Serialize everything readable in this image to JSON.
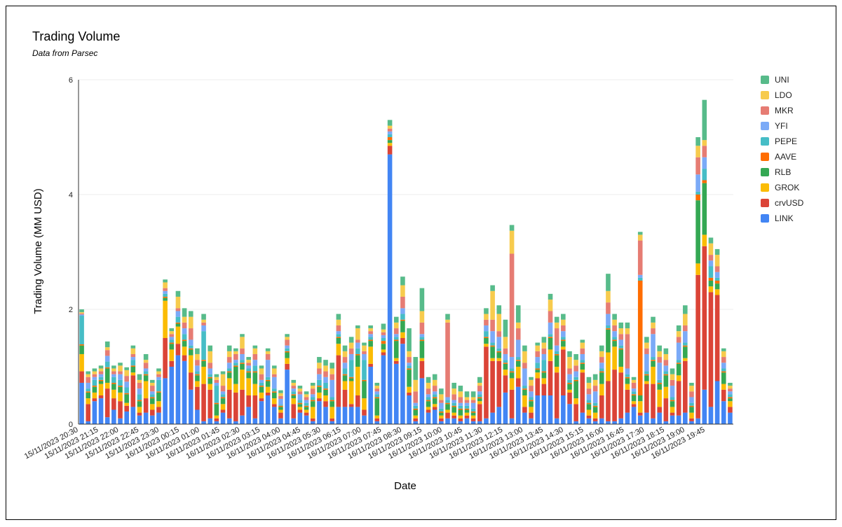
{
  "chart_data": {
    "type": "bar",
    "stacked": true,
    "title": "Trading Volume",
    "subtitle": "Data from Parsec",
    "xlabel": "Date",
    "ylabel": "Trading Volume (MM USD)",
    "ylim": [
      0,
      6
    ],
    "yticks": [
      0,
      2,
      4,
      6
    ],
    "legend_position": "right",
    "xtick_labels": [
      "15/11/2023 20:30",
      "15/11/2023 21:15",
      "15/11/2023 22:00",
      "15/11/2023 22:45",
      "15/11/2023 23:30",
      "16/11/2023 00:15",
      "16/11/2023 01:00",
      "16/11/2023 01:45",
      "16/11/2023 02:30",
      "16/11/2023 03:15",
      "16/11/2023 04:00",
      "16/11/2023 04:45",
      "16/11/2023 05:30",
      "16/11/2023 06:15",
      "16/11/2023 07:00",
      "16/11/2023 07:45",
      "16/11/2023 08:30",
      "16/11/2023 09:15",
      "16/11/2023 10:00",
      "16/11/2023 10:45",
      "16/11/2023 11:30",
      "16/11/2023 12:15",
      "16/11/2023 13:00",
      "16/11/2023 13:45",
      "16/11/2023 14:30",
      "16/11/2023 15:15",
      "16/11/2023 16:00",
      "16/11/2023 16:45",
      "16/11/2023 17:30",
      "16/11/2023 18:15",
      "16/11/2023 19:00",
      "16/11/2023 19:45"
    ],
    "series": [
      {
        "name": "LINK",
        "color": "#4285f4",
        "values": [
          0.72,
          0.05,
          0.4,
          0.45,
          0.12,
          0.25,
          0.1,
          0.22,
          0.3,
          0.15,
          0.2,
          0.15,
          0.2,
          0.8,
          1.0,
          1.2,
          1.1,
          0.6,
          0.25,
          0.05,
          0.1,
          0.05,
          0.2,
          0.1,
          0.05,
          0.15,
          0.3,
          0.1,
          0.4,
          0.5,
          0.3,
          0.1,
          0.95,
          0.1,
          0.2,
          0.15,
          0.05,
          0.4,
          0.3,
          0.05,
          0.3,
          0.3,
          0.3,
          0.3,
          0.15,
          1.0,
          0.05,
          1.2,
          4.7,
          1.05,
          1.4,
          0.5,
          0.05,
          0.8,
          0.2,
          0.25,
          0.05,
          0.1,
          0.1,
          0.05,
          0.1,
          0.05,
          0.05,
          0.1,
          0.2,
          0.3,
          0.55,
          0.1,
          0.65,
          0.2,
          0.1,
          0.5,
          0.5,
          0.5,
          0.1,
          0.5,
          0.35,
          0.05,
          0.2,
          0.1,
          0.05,
          0.1,
          0.05,
          0.05,
          0.1,
          0.2,
          0.3,
          0.15,
          0.2,
          0.1,
          0.2,
          0.05,
          0.15,
          0.15,
          0.2,
          0.05,
          0.1,
          0.6,
          0.3,
          0.75,
          0.4,
          0.2
        ]
      },
      {
        "name": "crvUSD",
        "color": "#db4437",
        "values": [
          0.2,
          0.3,
          0.05,
          0.05,
          0.5,
          0.2,
          0.3,
          0.1,
          0.55,
          0.05,
          0.25,
          0.1,
          0.1,
          0.7,
          0.1,
          0.2,
          0.1,
          0.3,
          0.4,
          0.65,
          0.5,
          0.05,
          0.05,
          0.5,
          0.5,
          0.45,
          0.2,
          0.4,
          0.05,
          0.05,
          0.05,
          0.1,
          0.1,
          0.25,
          0.05,
          0.05,
          0.05,
          0.05,
          0.1,
          0.05,
          0.9,
          0.3,
          0.05,
          0.2,
          0.1,
          0.05,
          0.05,
          0.05,
          0.15,
          0.05,
          0.1,
          0.05,
          0.05,
          0.3,
          0.05,
          0.05,
          0.05,
          0.1,
          0.05,
          0.05,
          0.05,
          0.05,
          0.3,
          1.25,
          0.9,
          0.8,
          0.3,
          0.5,
          0.15,
          0.1,
          0.1,
          0.3,
          0.2,
          0.6,
          0.8,
          0.8,
          0.2,
          0.3,
          0.7,
          0.05,
          0.05,
          0.4,
          0.7,
          0.9,
          0.8,
          0.4,
          0.05,
          0.05,
          0.5,
          0.6,
          0.1,
          0.4,
          0.05,
          0.6,
          0.9,
          0.05,
          2.5,
          2.5,
          2.0,
          1.5,
          0.2,
          0.1
        ]
      },
      {
        "name": "GROK",
        "color": "#fbbc04",
        "values": [
          0.3,
          0.1,
          0.1,
          0.2,
          0.1,
          0.15,
          0.15,
          0.05,
          0.05,
          0.1,
          0.3,
          0.1,
          0.1,
          0.65,
          0.2,
          0.3,
          0.15,
          0.3,
          0.1,
          0.3,
          0.1,
          0.05,
          0.1,
          0.2,
          0.15,
          0.35,
          0.3,
          0.2,
          0.1,
          0.1,
          0.1,
          0.05,
          0.1,
          0.1,
          0.05,
          0.05,
          0.2,
          0.1,
          0.1,
          0.2,
          0.2,
          0.15,
          0.4,
          0.5,
          0.2,
          0.3,
          0.05,
          0.05,
          0.05,
          0.05,
          0.1,
          0.1,
          0.05,
          0.05,
          0.05,
          0.05,
          0.05,
          0.05,
          0.05,
          0.05,
          0.05,
          0.05,
          0.05,
          0.05,
          0.05,
          0.05,
          0.1,
          0.2,
          0.2,
          0.2,
          0.1,
          0.1,
          0.1,
          0.2,
          0.1,
          0.05,
          0.05,
          0.1,
          0.05,
          0.1,
          0.1,
          0.2,
          0.5,
          0.4,
          0.1,
          0.1,
          0.05,
          0.2,
          0.05,
          0.3,
          0.3,
          0.2,
          0.1,
          0.1,
          0.05,
          0.1,
          0.2,
          0.2,
          0.1,
          0.1,
          0.1,
          0.1
        ]
      },
      {
        "name": "RLB",
        "color": "#34a853",
        "values": [
          0.15,
          0.1,
          0.1,
          0.05,
          0.25,
          0.1,
          0.1,
          0.15,
          0.1,
          0.1,
          0.1,
          0.1,
          0.15,
          0.05,
          0.1,
          0.05,
          0.1,
          0.1,
          0.1,
          0.1,
          0.1,
          0.2,
          0.1,
          0.1,
          0.3,
          0.1,
          0.1,
          0.2,
          0.1,
          0.1,
          0.1,
          0.05,
          0.1,
          0.05,
          0.05,
          0.05,
          0.1,
          0.1,
          0.1,
          0.1,
          0.1,
          0.1,
          0.05,
          0.2,
          0.3,
          0.1,
          0.3,
          0.1,
          0.05,
          0.3,
          0.2,
          0.3,
          0.1,
          0.3,
          0.1,
          0.1,
          0.05,
          0.1,
          0.1,
          0.1,
          0.05,
          0.05,
          0.05,
          0.1,
          0.2,
          0.1,
          0.1,
          0.1,
          0.1,
          0.1,
          0.1,
          0.05,
          0.1,
          0.2,
          0.2,
          0.1,
          0.1,
          0.3,
          0.1,
          0.1,
          0.1,
          0.2,
          0.4,
          0.1,
          0.3,
          0.1,
          0.1,
          0.1,
          0.1,
          0.1,
          0.1,
          0.2,
          0.1,
          0.2,
          0.2,
          0.1,
          1.1,
          0.9,
          0.1,
          0.1,
          0.2,
          0.05
        ]
      },
      {
        "name": "AAVE",
        "color": "#ff6d01",
        "values": [
          0.02,
          0.02,
          0.02,
          0.02,
          0.02,
          0.02,
          0.02,
          0.02,
          0.02,
          0.02,
          0.02,
          0.02,
          0.02,
          0.02,
          0.02,
          0.02,
          0.02,
          0.02,
          0.02,
          0.02,
          0.02,
          0.02,
          0.02,
          0.02,
          0.02,
          0.02,
          0.02,
          0.02,
          0.02,
          0.02,
          0.02,
          0.02,
          0.02,
          0.02,
          0.02,
          0.02,
          0.02,
          0.02,
          0.02,
          0.02,
          0.02,
          0.02,
          0.02,
          0.02,
          0.02,
          0.02,
          0.02,
          0.05,
          0.05,
          0.02,
          0.02,
          0.02,
          0.02,
          0.02,
          0.02,
          0.02,
          0.02,
          0.02,
          0.02,
          0.02,
          0.02,
          0.02,
          0.02,
          0.02,
          0.02,
          0.02,
          0.02,
          0.02,
          0.02,
          0.02,
          0.02,
          0.02,
          0.02,
          0.02,
          0.02,
          0.02,
          0.02,
          0.02,
          0.02,
          0.02,
          0.02,
          0.02,
          0.02,
          0.02,
          0.02,
          0.02,
          0.02,
          2.0,
          0.02,
          0.02,
          0.02,
          0.02,
          0.02,
          0.02,
          0.02,
          0.02,
          0.1,
          0.05,
          0.05,
          0.05,
          0.02,
          0.02
        ]
      },
      {
        "name": "PEPE",
        "color": "#46bdc6",
        "values": [
          0.5,
          0.05,
          0.1,
          0.05,
          0.1,
          0.1,
          0.1,
          0.1,
          0.1,
          0.1,
          0.05,
          0.05,
          0.2,
          0.05,
          0.05,
          0.1,
          0.1,
          0.05,
          0.05,
          0.5,
          0.05,
          0.3,
          0.05,
          0.05,
          0.05,
          0.05,
          0.05,
          0.1,
          0.05,
          0.05,
          0.05,
          0.02,
          0.05,
          0.05,
          0.05,
          0.05,
          0.05,
          0.1,
          0.1,
          0.05,
          0.05,
          0.1,
          0.3,
          0.1,
          0.35,
          0.05,
          0.05,
          0.05,
          0.05,
          0.05,
          0.1,
          0.05,
          0.05,
          0.05,
          0.05,
          0.05,
          0.05,
          0.05,
          0.05,
          0.05,
          0.05,
          0.05,
          0.05,
          0.1,
          0.05,
          0.05,
          0.05,
          0.05,
          0.05,
          0.05,
          0.05,
          0.1,
          0.2,
          0.05,
          0.05,
          0.05,
          0.05,
          0.05,
          0.05,
          0.05,
          0.05,
          0.05,
          0.05,
          0.05,
          0.05,
          0.05,
          0.05,
          0.05,
          0.05,
          0.05,
          0.05,
          0.05,
          0.05,
          0.05,
          0.05,
          0.05,
          0.05,
          0.2,
          0.2,
          0.05,
          0.05,
          0.05
        ]
      },
      {
        "name": "YFI",
        "color": "#7baaf7",
        "values": [
          0.02,
          0.1,
          0.05,
          0.05,
          0.1,
          0.05,
          0.1,
          0.1,
          0.05,
          0.1,
          0.05,
          0.05,
          0.05,
          0.05,
          0.05,
          0.1,
          0.1,
          0.1,
          0.1,
          0.1,
          0.1,
          0.05,
          0.05,
          0.1,
          0.05,
          0.1,
          0.05,
          0.1,
          0.05,
          0.3,
          0.2,
          0.1,
          0.05,
          0.05,
          0.1,
          0.05,
          0.05,
          0.1,
          0.1,
          0.3,
          0.05,
          0.1,
          0.1,
          0.1,
          0.1,
          0.05,
          0.05,
          0.05,
          0.05,
          0.05,
          0.1,
          0.05,
          0.05,
          0.05,
          0.05,
          0.05,
          0.1,
          0.05,
          0.05,
          0.05,
          0.05,
          0.1,
          0.05,
          0.1,
          0.2,
          0.2,
          0.1,
          0.2,
          0.3,
          0.3,
          0.1,
          0.1,
          0.1,
          0.2,
          0.1,
          0.1,
          0.1,
          0.1,
          0.1,
          0.1,
          0.2,
          0.1,
          0.2,
          0.1,
          0.1,
          0.1,
          0.05,
          0.05,
          0.3,
          0.4,
          0.3,
          0.1,
          0.2,
          0.3,
          0.2,
          0.1,
          0.3,
          0.2,
          0.1,
          0.1,
          0.1,
          0.05
        ]
      },
      {
        "name": "MKR",
        "color": "#e67c73",
        "values": [
          0.02,
          0.1,
          0.05,
          0.05,
          0.1,
          0.05,
          0.05,
          0.1,
          0.05,
          0.1,
          0.1,
          0.1,
          0.05,
          0.05,
          0.05,
          0.05,
          0.1,
          0.2,
          0.1,
          0.05,
          0.1,
          0.05,
          0.1,
          0.1,
          0.1,
          0.1,
          0.05,
          0.1,
          0.1,
          0.1,
          0.05,
          0.05,
          0.1,
          0.05,
          0.05,
          0.05,
          0.1,
          0.1,
          0.1,
          0.1,
          0.1,
          0.1,
          0.1,
          0.05,
          0.05,
          0.05,
          0.05,
          0.05,
          0.05,
          0.1,
          0.2,
          0.1,
          0.2,
          0.2,
          0.1,
          0.1,
          0.05,
          1.3,
          0.1,
          0.1,
          0.05,
          0.05,
          0.1,
          0.1,
          0.2,
          0.1,
          0.1,
          1.8,
          0.2,
          0.1,
          0.1,
          0.1,
          0.1,
          0.2,
          0.3,
          0.1,
          0.1,
          0.1,
          0.1,
          0.1,
          0.1,
          0.1,
          0.2,
          0.1,
          0.1,
          0.6,
          0.1,
          0.6,
          0.1,
          0.1,
          0.1,
          0.1,
          0.1,
          0.1,
          0.1,
          0.1,
          0.3,
          0.2,
          0.1,
          0.1,
          0.1,
          0.05
        ]
      },
      {
        "name": "LDO",
        "color": "#f7cb4d",
        "values": [
          0.02,
          0.05,
          0.05,
          0.05,
          0.05,
          0.05,
          0.1,
          0.1,
          0.1,
          0.05,
          0.05,
          0.05,
          0.05,
          0.1,
          0.05,
          0.2,
          0.1,
          0.2,
          0.1,
          0.05,
          0.2,
          0.05,
          0.2,
          0.1,
          0.05,
          0.2,
          0.05,
          0.1,
          0.1,
          0.05,
          0.1,
          0.05,
          0.05,
          0.05,
          0.05,
          0.05,
          0.05,
          0.1,
          0.1,
          0.1,
          0.1,
          0.1,
          0.1,
          0.2,
          0.1,
          0.05,
          0.05,
          0.05,
          0.05,
          0.1,
          0.2,
          0.1,
          0.2,
          0.2,
          0.1,
          0.1,
          0.1,
          0.05,
          0.1,
          0.1,
          0.05,
          0.05,
          0.05,
          0.1,
          0.5,
          0.3,
          0.2,
          0.4,
          0.1,
          0.2,
          0.1,
          0.1,
          0.1,
          0.2,
          0.1,
          0.1,
          0.2,
          0.1,
          0.1,
          0.1,
          0.1,
          0.1,
          0.2,
          0.1,
          0.1,
          0.1,
          0.05,
          0.1,
          0.1,
          0.1,
          0.1,
          0.1,
          0.1,
          0.1,
          0.2,
          0.1,
          0.2,
          0.1,
          0.2,
          0.2,
          0.1,
          0.05
        ]
      },
      {
        "name": "UNI",
        "color": "#57bb8a",
        "values": [
          0.05,
          0.05,
          0.05,
          0.05,
          0.1,
          0.05,
          0.05,
          0.05,
          0.05,
          0.1,
          0.1,
          0.05,
          0.05,
          0.05,
          0.05,
          0.1,
          0.15,
          0.1,
          0.1,
          0.1,
          0.1,
          0.05,
          0.05,
          0.1,
          0.05,
          0.05,
          0.05,
          0.05,
          0.05,
          0.05,
          0.05,
          0.05,
          0.05,
          0.05,
          0.05,
          0.05,
          0.05,
          0.1,
          0.1,
          0.1,
          0.1,
          0.1,
          0.1,
          0.05,
          0.05,
          0.05,
          0.05,
          0.1,
          0.1,
          0.1,
          0.15,
          0.4,
          0.4,
          0.4,
          0.1,
          0.1,
          0.1,
          0.1,
          0.1,
          0.1,
          0.1,
          0.1,
          0.1,
          0.1,
          0.1,
          0.15,
          0.3,
          0.1,
          0.3,
          0.1,
          0.05,
          0.05,
          0.1,
          0.1,
          0.1,
          0.1,
          0.1,
          0.1,
          0.05,
          0.1,
          0.1,
          0.1,
          0.3,
          0.1,
          0.1,
          0.1,
          0.05,
          0.05,
          0.1,
          0.1,
          0.1,
          0.1,
          0.1,
          0.1,
          0.15,
          0.05,
          0.15,
          0.7,
          0.1,
          0.1,
          0.05,
          0.05
        ]
      }
    ]
  }
}
